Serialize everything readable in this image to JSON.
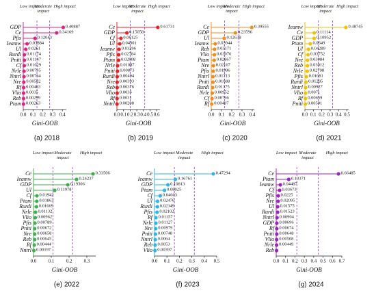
{
  "chart_data": [
    {
      "type": "lollipop",
      "caption": "(a) 2018",
      "xlabel": "Gini-OOB",
      "color": "#e0218a",
      "annotations": [
        "Low impact",
        "Moderate impact",
        "High impact"
      ],
      "categories": [
        "GDP",
        "Ce",
        "Pfis",
        "Ieamw",
        "Ul",
        "Rurdi",
        "Pniti",
        "Cf",
        "Nrle",
        "Nntrl",
        "Nre",
        "Rf",
        "Vlio",
        "Reb",
        "Ptam"
      ],
      "values": [
        0.40887,
        0.34169,
        0.12043,
        0.03884,
        0.0261,
        0.01174,
        0.01147,
        0.01029,
        0.00795,
        0.00764,
        0.00582,
        0.00403,
        0.0035,
        0.00299,
        0.00263
      ],
      "xlim": [
        0,
        0.44
      ],
      "thresholds": [
        0.14,
        0.27
      ],
      "xticks": [
        {
          "value": 0,
          "label": "0.0"
        },
        {
          "value": 0.1,
          "label": "0.1"
        },
        {
          "value": 0.2,
          "label": "0.2"
        },
        {
          "value": 0.3,
          "label": "0.3"
        },
        {
          "value": 0.4,
          "label": "0.4"
        }
      ]
    },
    {
      "type": "lollipop",
      "caption": "(b) 2019",
      "xlabel": "Gini-OOB",
      "color": "#e8202a",
      "annotations": [
        "Low impact",
        "Moderate impact",
        "High impact"
      ],
      "categories": [
        "Ce",
        "GDP",
        "Cf",
        "Ul",
        "Ieamw",
        "Pfis",
        "Ptam",
        "Nrle",
        "Pniti",
        "Rurdi",
        "Nre",
        "Reb",
        "Vlio",
        "Rf",
        "Nntrl"
      ],
      "values": [
        0.61731,
        0.15058,
        0.06125,
        0.04301,
        0.03296,
        0.02784,
        0.02608,
        0.01087,
        0.00873,
        0.00494,
        0.00393,
        0.00376,
        0.0036,
        0.0031,
        0.00208
      ],
      "xlim": [
        0,
        0.65
      ],
      "thresholds": [
        0.2,
        0.42
      ],
      "xticks": [
        {
          "value": 0,
          "label": "0.0"
        },
        {
          "value": 0.1,
          "label": "0.1"
        },
        {
          "value": 0.2,
          "label": "0.2"
        },
        {
          "value": 0.3,
          "label": "0.3"
        },
        {
          "value": 0.4,
          "label": "0.4"
        },
        {
          "value": 0.5,
          "label": "0.5"
        },
        {
          "value": 0.6,
          "label": "0.6"
        }
      ]
    },
    {
      "type": "lollipop",
      "caption": "(c) 2020",
      "xlabel": "Gini-OOB",
      "color": "#f28c1a",
      "annotations": [
        "Low impact",
        "Moderate impact",
        "High impact"
      ],
      "categories": [
        "Ce",
        "GDP",
        "Ul",
        "Ieamw",
        "Reb",
        "Vlio",
        "Ptam",
        "Nre",
        "Pfis",
        "Nntrl",
        "Pniti",
        "Rurdi",
        "Nrle",
        "Cf",
        "Rf"
      ],
      "values": [
        0.39555,
        0.23596,
        0.12638,
        0.03944,
        0.03171,
        0.03076,
        0.02867,
        0.02167,
        0.01996,
        0.01713,
        0.01688,
        0.01375,
        0.00952,
        0.00766,
        0.00497
      ],
      "xlim": [
        0,
        0.42
      ],
      "thresholds": [
        0.13,
        0.27
      ],
      "xticks": [
        {
          "value": 0,
          "label": "0.0"
        },
        {
          "value": 0.1,
          "label": "0.1"
        },
        {
          "value": 0.2,
          "label": "0.2"
        },
        {
          "value": 0.3,
          "label": "0.3"
        },
        {
          "value": 0.4,
          "label": "0.4"
        }
      ]
    },
    {
      "type": "lollipop",
      "caption": "(d) 2021",
      "xlabel": "Gini-OOB",
      "color": "#f2c200",
      "annotations": [
        "Low impact",
        "Moderate impact",
        "High impact"
      ],
      "categories": [
        "Ieamw",
        "Ce",
        "GDP",
        "Ptam",
        "Ul",
        "Cf",
        "Nre",
        "Reb",
        "Nrle",
        "Pfis",
        "Rurdi",
        "Nntrl",
        "Vlio",
        "Rf",
        "Pniti"
      ],
      "values": [
        0.48745,
        0.11114,
        0.10952,
        0.0649,
        0.04289,
        0.03752,
        0.03084,
        0.03012,
        0.02798,
        0.01681,
        0.01285,
        0.00927,
        0.0071,
        0.00659,
        0.00501
      ],
      "xlim": [
        0,
        0.52
      ],
      "thresholds": [
        0.16,
        0.33
      ],
      "xticks": [
        {
          "value": 0,
          "label": "0.0"
        },
        {
          "value": 0.1,
          "label": "0.1"
        },
        {
          "value": 0.2,
          "label": "0.2"
        },
        {
          "value": 0.3,
          "label": "0.3"
        },
        {
          "value": 0.4,
          "label": "0.4"
        },
        {
          "value": 0.5,
          "label": "0.5"
        }
      ]
    },
    {
      "type": "lollipop",
      "caption": "(e) 2022",
      "xlabel": "Gini-OOB",
      "color": "#3cb34a",
      "annotations": [
        "Low impact",
        "Moderate impact",
        "High impact"
      ],
      "categories": [
        "Ce",
        "Ieamw",
        "GDP",
        "Ul",
        "Cf",
        "Ptam",
        "Rurdi",
        "Nrle",
        "Vlio",
        "Pfis",
        "Pniti",
        "Nre",
        "Reb",
        "Rf",
        "Nntrl"
      ],
      "values": [
        0.33506,
        0.24237,
        0.19306,
        0.11978,
        0.01942,
        0.01863,
        0.01669,
        0.01132,
        0.00962,
        0.00789,
        0.00672,
        0.00658,
        0.00645,
        0.00444,
        0.00197
      ],
      "xlim": [
        0,
        0.35
      ],
      "thresholds": [
        0.11,
        0.22
      ],
      "xticks": [
        {
          "value": 0,
          "label": "0.0"
        },
        {
          "value": 0.1,
          "label": "0.1"
        },
        {
          "value": 0.2,
          "label": "0.2"
        },
        {
          "value": 0.3,
          "label": "0.3"
        }
      ]
    },
    {
      "type": "lollipop",
      "caption": "(f) 2023",
      "xlabel": "Gini-OOB",
      "color": "#29b6e8",
      "annotations": [
        "Low impact",
        "Moderate impact",
        "High impact"
      ],
      "categories": [
        "Ce",
        "Ieamw",
        "GDP",
        "Ptam",
        "Cf",
        "Ul",
        "Rurdi",
        "Pfis",
        "Rf",
        "Nrle",
        "Nre",
        "Pniti",
        "Nntrl",
        "Reb",
        "Vlio"
      ],
      "values": [
        0.47294,
        0.16761,
        0.10813,
        0.08025,
        0.04603,
        0.02476,
        0.02349,
        0.02102,
        0.01157,
        0.01127,
        0.00979,
        0.00748,
        0.0064,
        0.0053,
        0.00397
      ],
      "xlim": [
        0,
        0.5
      ],
      "thresholds": [
        0.16,
        0.32
      ],
      "xticks": [
        {
          "value": 0,
          "label": "0.0"
        },
        {
          "value": 0.1,
          "label": "0.1"
        },
        {
          "value": 0.2,
          "label": "0.2"
        },
        {
          "value": 0.3,
          "label": "0.3"
        },
        {
          "value": 0.4,
          "label": "0.4"
        },
        {
          "value": 0.5,
          "label": "0.5"
        }
      ]
    },
    {
      "type": "lollipop",
      "caption": "(g) 2024",
      "xlabel": "Gini-OOB",
      "color": "#a020c8",
      "annotations": [
        "Low impact",
        "Moderate impact",
        "High impact"
      ],
      "categories": [
        "Ce",
        "Ptam",
        "Ieamw",
        "Cf",
        "Pfis",
        "Nre",
        "Ul",
        "Rurdi",
        "Nntrl",
        "GDP",
        "Rf",
        "Pniti",
        "Vlio",
        "Nrle",
        "Reb"
      ],
      "values": [
        0.66485,
        0.13371,
        0.04487,
        0.03673,
        0.0225,
        0.02095,
        0.01575,
        0.01523,
        0.00904,
        0.00696,
        0.00674,
        0.00648,
        0.00508,
        0.00449,
        0.004
      ],
      "value_labels": [
        "0.66485",
        "0.13371",
        "0.04487",
        "0.03673",
        "0.0225",
        "0.02095",
        "0.01575",
        "0.01523",
        "0.00904",
        "0.00696",
        "0.00674",
        "0.00648",
        "0.00508",
        "0.00449",
        null
      ],
      "xlim": [
        0,
        0.7
      ],
      "thresholds": [
        0.22,
        0.45
      ],
      "xticks": [
        {
          "value": 0,
          "label": "0.0"
        },
        {
          "value": 0.1,
          "label": "0.1"
        },
        {
          "value": 0.2,
          "label": "0.2"
        },
        {
          "value": 0.3,
          "label": "0.3"
        },
        {
          "value": 0.4,
          "label": "0.4"
        },
        {
          "value": 0.5,
          "label": "0.5"
        },
        {
          "value": 0.6,
          "label": "0.6"
        },
        {
          "value": 0.7,
          "label": "0.7"
        }
      ]
    }
  ]
}
